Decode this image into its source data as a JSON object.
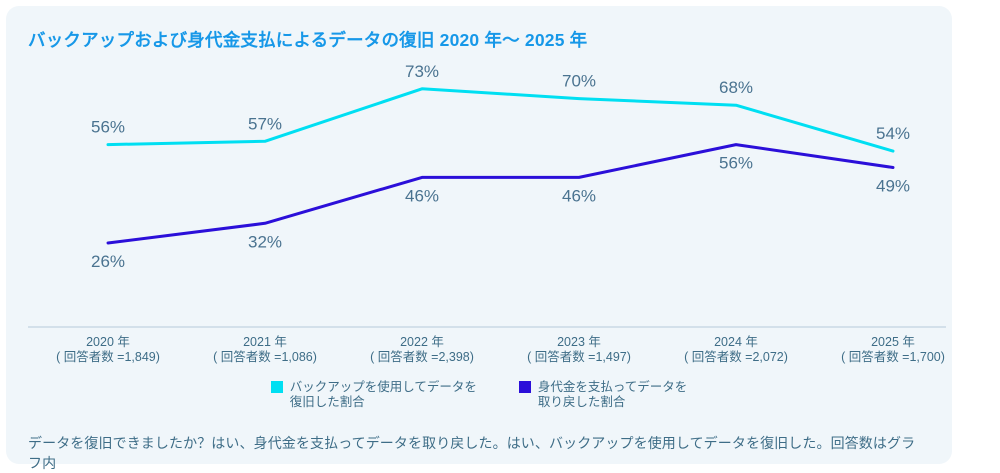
{
  "title": "バックアップおよび身代金支払によるデータの復旧 2020 年～ 2025 年",
  "footnote": "データを復旧できましたか？はい、身代金を支払ってデータを取り戻した。はい、バックアップを使用してデータを復旧した。回答数はグラフ内",
  "colors": {
    "title": "#1798E8",
    "card_bg": "#F0F6FA",
    "point_label": "#4A7390",
    "axis_text": "#3E6D87",
    "axis_line": "#C9D9E5",
    "backup_line": "#00DFF2",
    "ransom_line": "#2B0FD9"
  },
  "chart_data": {
    "type": "line",
    "title": "バックアップおよび身代金支払によるデータの復旧 2020 年～ 2025 年",
    "value_suffix": "%",
    "ylim": [
      20,
      80
    ],
    "grid": false,
    "legend_position": "bottom",
    "categories": [
      {
        "year": "2020 年",
        "respondents": "( 回答者数 =1,849)"
      },
      {
        "year": "2021 年",
        "respondents": "( 回答者数 =1,086)"
      },
      {
        "year": "2022 年",
        "respondents": "( 回答者数 =2,398)"
      },
      {
        "year": "2023 年",
        "respondents": "( 回答者数 =1,497)"
      },
      {
        "year": "2024 年",
        "respondents": "( 回答者数 =2,072)"
      },
      {
        "year": "2025 年",
        "respondents": "( 回答者数 =1,700)"
      }
    ],
    "series": [
      {
        "name": "バックアップを使用してデータを\n復旧した割合",
        "values": [
          56,
          57,
          73,
          70,
          68,
          54
        ],
        "color": "#00DFF2",
        "label_position": "above"
      },
      {
        "name": "身代金を支払ってデータを\n取り戻した割合",
        "values": [
          26,
          32,
          46,
          46,
          56,
          49
        ],
        "color": "#2B0FD9",
        "label_position": "below"
      }
    ]
  }
}
